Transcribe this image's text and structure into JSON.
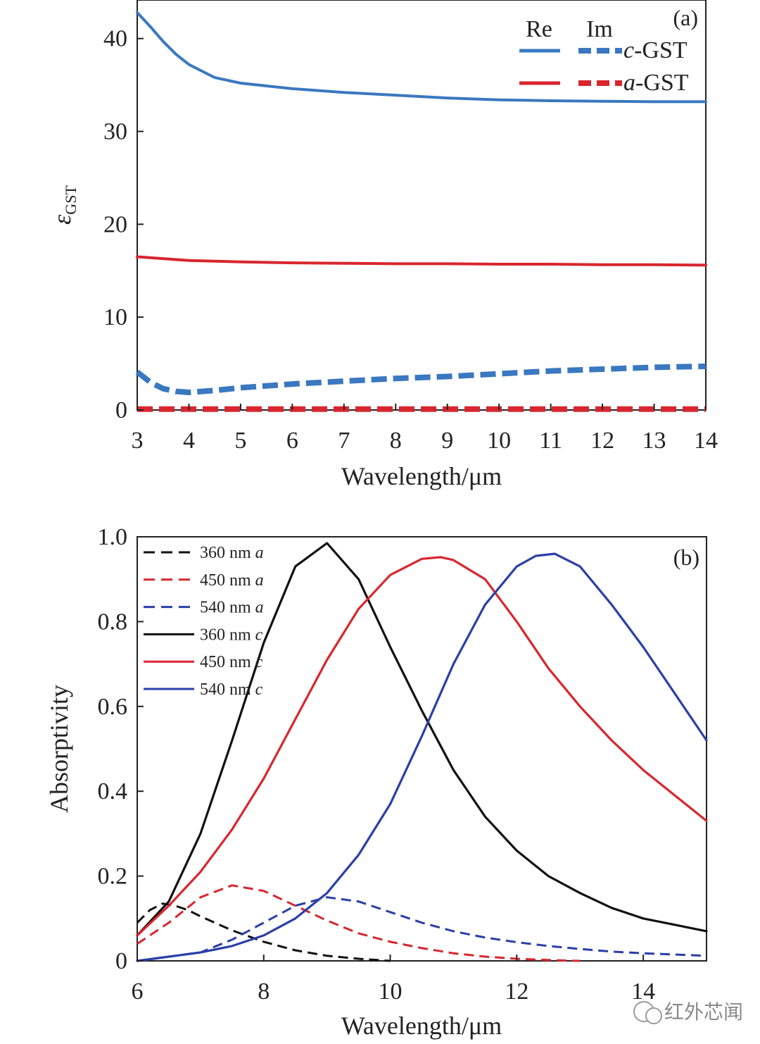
{
  "chart_data": [
    {
      "type": "line",
      "panel_label": "(a)",
      "xlabel": "Wavelength/μm",
      "ylabel": "ε",
      "ylabel_sub": "GST",
      "xlim": [
        3,
        14
      ],
      "ylim": [
        0,
        44
      ],
      "xticks": [
        "3",
        "4",
        "5",
        "6",
        "7",
        "8",
        "9",
        "10",
        "11",
        "12",
        "13",
        "14"
      ],
      "yticks": [
        "0",
        "10",
        "20",
        "30",
        "40"
      ],
      "legend": {
        "col_re": "Re",
        "col_im": "Im",
        "rows": [
          {
            "label_italic": "c",
            "label_rest": "-GST",
            "color": "#3a78c0"
          },
          {
            "label_italic": "a",
            "label_rest": "-GST",
            "color": "#d8262e"
          }
        ]
      },
      "series": [
        {
          "name": "Re c-GST",
          "style": "solid",
          "color": "#3a78c0",
          "x": [
            3,
            3.25,
            3.5,
            3.75,
            4,
            4.5,
            5,
            6,
            7,
            8,
            9,
            10,
            11,
            12,
            13,
            14
          ],
          "y": [
            42.8,
            41.3,
            39.7,
            38.3,
            37.2,
            35.8,
            35.2,
            34.6,
            34.2,
            33.9,
            33.6,
            33.4,
            33.3,
            33.25,
            33.2,
            33.2
          ]
        },
        {
          "name": "Im c-GST",
          "style": "dashed",
          "color": "#3a78c0",
          "x": [
            3,
            3.25,
            3.5,
            3.75,
            4,
            4.5,
            5,
            6,
            7,
            8,
            9,
            10,
            11,
            12,
            13,
            14
          ],
          "y": [
            4.1,
            3.0,
            2.3,
            2.0,
            1.9,
            2.1,
            2.4,
            2.8,
            3.1,
            3.4,
            3.6,
            3.9,
            4.2,
            4.4,
            4.6,
            4.7
          ]
        },
        {
          "name": "Re a-GST",
          "style": "solid",
          "color": "#d8262e",
          "x": [
            3,
            3.5,
            4,
            5,
            6,
            7,
            8,
            9,
            10,
            11,
            12,
            13,
            14
          ],
          "y": [
            16.5,
            16.3,
            16.1,
            15.95,
            15.85,
            15.8,
            15.75,
            15.75,
            15.7,
            15.7,
            15.65,
            15.65,
            15.6
          ]
        },
        {
          "name": "Im a-GST",
          "style": "dashed",
          "color": "#d8262e",
          "x": [
            3,
            14
          ],
          "y": [
            0.1,
            0.1
          ]
        }
      ]
    },
    {
      "type": "line",
      "panel_label": "(b)",
      "xlabel": "Wavelength/μm",
      "ylabel": "Absorptivity",
      "xlim": [
        6,
        15
      ],
      "ylim": [
        0,
        1.0
      ],
      "xticks": [
        "6",
        "8",
        "10",
        "12",
        "14"
      ],
      "yticks": [
        "0",
        "0.2",
        "0.4",
        "0.6",
        "0.8",
        "1.0"
      ],
      "legend": [
        {
          "thickness": "360 nm",
          "phase": "a",
          "style": "dashed",
          "color": "#111111"
        },
        {
          "thickness": "450 nm",
          "phase": "a",
          "style": "dashed",
          "color": "#d8262e"
        },
        {
          "thickness": "540 nm",
          "phase": "a",
          "style": "dashed",
          "color": "#2b3fa8"
        },
        {
          "thickness": "360 nm",
          "phase": "c",
          "style": "solid",
          "color": "#111111"
        },
        {
          "thickness": "450 nm",
          "phase": "c",
          "style": "solid",
          "color": "#d8262e"
        },
        {
          "thickness": "540 nm",
          "phase": "c",
          "style": "solid",
          "color": "#2b3fa8"
        }
      ],
      "series": [
        {
          "name": "360 nm a",
          "style": "dashed",
          "color": "#111111",
          "x": [
            6,
            6.2,
            6.4,
            6.6,
            6.8,
            7,
            7.5,
            8,
            8.5,
            9,
            9.5,
            10
          ],
          "y": [
            0.09,
            0.12,
            0.135,
            0.13,
            0.12,
            0.105,
            0.072,
            0.045,
            0.025,
            0.012,
            0.005,
            0.0
          ]
        },
        {
          "name": "450 nm a",
          "style": "dashed",
          "color": "#d8262e",
          "x": [
            6,
            6.5,
            7,
            7.5,
            8,
            8.5,
            9,
            9.5,
            10,
            10.5,
            11,
            11.5,
            12,
            12.5,
            13
          ],
          "y": [
            0.04,
            0.09,
            0.15,
            0.178,
            0.165,
            0.13,
            0.095,
            0.065,
            0.045,
            0.03,
            0.018,
            0.01,
            0.005,
            0.002,
            0.0
          ]
        },
        {
          "name": "540 nm a",
          "style": "dashed",
          "color": "#2b3fa8",
          "x": [
            6,
            7,
            7.5,
            8,
            8.5,
            9,
            9.5,
            10,
            10.5,
            11,
            11.5,
            12,
            12.5,
            13,
            13.5,
            14,
            14.5,
            15
          ],
          "y": [
            0.0,
            0.02,
            0.05,
            0.09,
            0.13,
            0.15,
            0.14,
            0.115,
            0.09,
            0.07,
            0.055,
            0.044,
            0.035,
            0.028,
            0.022,
            0.018,
            0.015,
            0.012
          ]
        },
        {
          "name": "360 nm c",
          "style": "solid",
          "color": "#111111",
          "x": [
            6,
            6.5,
            7,
            7.5,
            8,
            8.5,
            9,
            9.5,
            10,
            10.5,
            11,
            11.5,
            12,
            12.5,
            13,
            13.5,
            14,
            14.5,
            15
          ],
          "y": [
            0.06,
            0.14,
            0.3,
            0.52,
            0.75,
            0.93,
            0.985,
            0.9,
            0.74,
            0.59,
            0.45,
            0.34,
            0.26,
            0.2,
            0.16,
            0.125,
            0.1,
            0.085,
            0.07
          ]
        },
        {
          "name": "450 nm c",
          "style": "solid",
          "color": "#d8262e",
          "x": [
            6,
            6.5,
            7,
            7.5,
            8,
            8.5,
            9,
            9.5,
            10,
            10.5,
            10.8,
            11,
            11.5,
            12,
            12.5,
            13,
            13.5,
            14,
            14.5,
            15
          ],
          "y": [
            0.06,
            0.13,
            0.21,
            0.31,
            0.43,
            0.57,
            0.71,
            0.83,
            0.91,
            0.948,
            0.952,
            0.945,
            0.9,
            0.8,
            0.69,
            0.6,
            0.52,
            0.45,
            0.39,
            0.33
          ]
        },
        {
          "name": "540 nm c",
          "style": "solid",
          "color": "#2b3fa8",
          "x": [
            6,
            7,
            7.5,
            8,
            8.5,
            9,
            9.5,
            10,
            10.5,
            11,
            11.5,
            12,
            12.3,
            12.6,
            13,
            13.5,
            14,
            14.5,
            15
          ],
          "y": [
            0.0,
            0.02,
            0.035,
            0.06,
            0.1,
            0.16,
            0.25,
            0.37,
            0.53,
            0.7,
            0.84,
            0.93,
            0.955,
            0.96,
            0.93,
            0.84,
            0.74,
            0.63,
            0.52
          ]
        }
      ]
    }
  ],
  "watermark": {
    "text": "红外芯闻"
  }
}
